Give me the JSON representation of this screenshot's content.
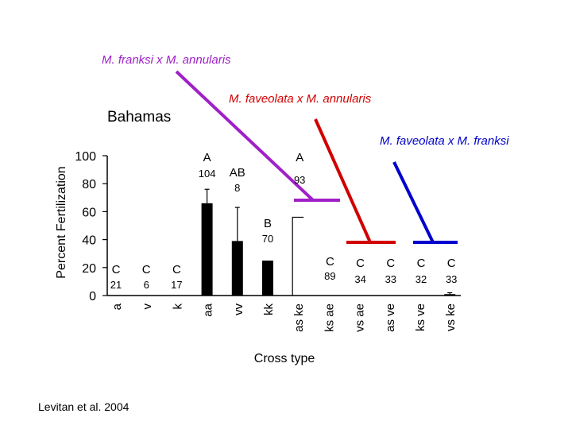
{
  "slide": {
    "region": "Bahamas",
    "citation": "Levitan et al. 2004"
  },
  "callouts": [
    {
      "label": "M. franksi x M. annularis",
      "color": "#a020c8"
    },
    {
      "label": "M. faveolata x M. annularis",
      "color": "#d10000"
    },
    {
      "label": "M. faveolata x M. franksi",
      "color": "#0000cc"
    }
  ],
  "chart_data": {
    "type": "bar",
    "ylabel": "Percent Fertilization",
    "xlabel": "Cross type",
    "ylim": [
      0,
      100
    ],
    "yticks": [
      0,
      20,
      40,
      60,
      80,
      100
    ],
    "grid": false,
    "categories": [
      "a",
      "v",
      "k",
      "aa",
      "vv",
      "kk",
      "as ke",
      "ks ae",
      "vs ae",
      "as ve",
      "ks ve",
      "vs ke"
    ],
    "values": [
      0,
      0,
      0,
      66,
      39,
      25,
      56,
      0,
      0,
      0,
      0,
      1
    ],
    "errors": [
      0,
      0,
      0,
      10,
      24,
      0,
      0,
      0,
      0,
      0,
      0,
      1
    ],
    "groups": [
      "C",
      "C",
      "C",
      "A",
      "AB",
      "B",
      "A",
      "C",
      "C",
      "C",
      "C",
      "C"
    ],
    "n": [
      "21",
      "6",
      "17",
      "104",
      "8",
      "70",
      "93",
      "89",
      "34",
      "33",
      "32",
      "33"
    ]
  }
}
